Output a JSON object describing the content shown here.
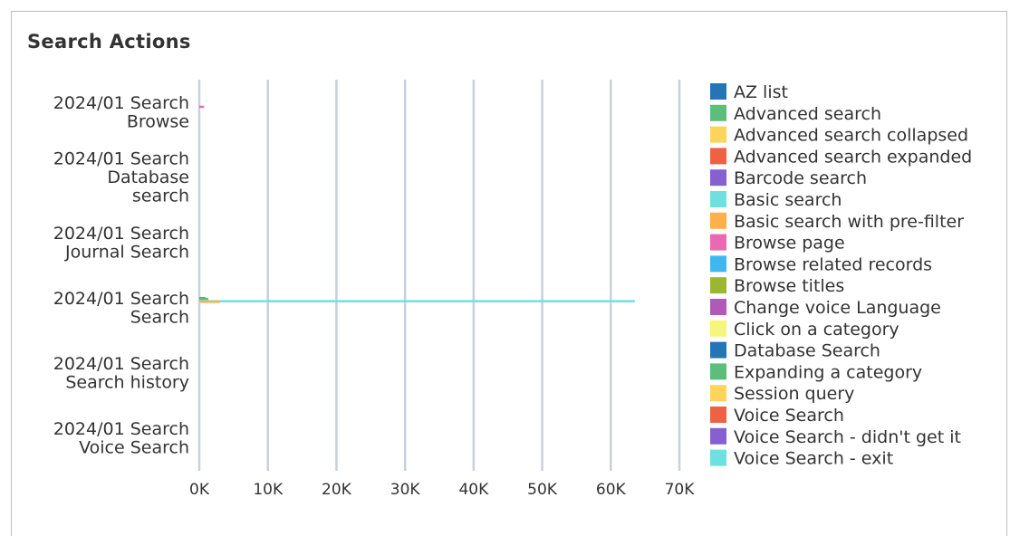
{
  "panel": {
    "title": "Search Actions"
  },
  "chart_data": {
    "type": "bar",
    "orientation": "horizontal",
    "title": "Search Actions",
    "categories": [
      [
        "2024/01 Search",
        "Browse"
      ],
      [
        "2024/01 Search",
        "Database",
        "search"
      ],
      [
        "2024/01 Search",
        "Journal Search"
      ],
      [
        "2024/01 Search",
        "Search"
      ],
      [
        "2024/01 Search",
        "Search history"
      ],
      [
        "2024/01 Search",
        "Voice Search"
      ]
    ],
    "xlim": [
      0,
      70000
    ],
    "xticks": [
      0,
      10000,
      20000,
      30000,
      40000,
      50000,
      60000,
      70000
    ],
    "xtick_labels": [
      "0K",
      "10K",
      "20K",
      "30K",
      "40K",
      "50K",
      "60K",
      "70K"
    ],
    "grid": true,
    "legend_position": "right",
    "series": [
      {
        "name": "AZ list",
        "color": "#2475b5",
        "values": [
          0,
          0,
          0,
          900,
          0,
          0
        ]
      },
      {
        "name": "Advanced search",
        "color": "#5dbd7a",
        "values": [
          0,
          0,
          0,
          1300,
          0,
          0
        ]
      },
      {
        "name": "Advanced search collapsed",
        "color": "#ffd45c",
        "values": [
          0,
          0,
          0,
          0,
          0,
          0
        ]
      },
      {
        "name": "Advanced search expanded",
        "color": "#ef6144",
        "values": [
          0,
          0,
          0,
          0,
          0,
          0
        ]
      },
      {
        "name": "Barcode search",
        "color": "#8660d0",
        "values": [
          0,
          0,
          0,
          0,
          0,
          0
        ]
      },
      {
        "name": "Basic search",
        "color": "#6ee0df",
        "values": [
          0,
          0,
          0,
          63500,
          0,
          0
        ]
      },
      {
        "name": "Basic search with pre-filter",
        "color": "#ffb04a",
        "values": [
          0,
          0,
          0,
          3000,
          0,
          0
        ]
      },
      {
        "name": "Browse page",
        "color": "#e96ab2",
        "values": [
          700,
          0,
          0,
          0,
          0,
          0
        ]
      },
      {
        "name": "Browse related records",
        "color": "#3fb8ef",
        "values": [
          0,
          0,
          0,
          0,
          0,
          0
        ]
      },
      {
        "name": "Browse titles",
        "color": "#9ab72f",
        "values": [
          0,
          0,
          0,
          0,
          0,
          0
        ]
      },
      {
        "name": "Change voice Language",
        "color": "#b159b8",
        "values": [
          0,
          0,
          0,
          0,
          0,
          0
        ]
      },
      {
        "name": "Click on a category",
        "color": "#f7f57a",
        "values": [
          0,
          0,
          0,
          0,
          0,
          0
        ]
      },
      {
        "name": "Database Search",
        "color": "#2475b5",
        "values": [
          0,
          0,
          0,
          0,
          0,
          0
        ]
      },
      {
        "name": "Expanding a category",
        "color": "#5dbd7a",
        "values": [
          0,
          0,
          0,
          0,
          0,
          0
        ]
      },
      {
        "name": "Session query",
        "color": "#ffd45c",
        "values": [
          0,
          0,
          0,
          0,
          0,
          0
        ]
      },
      {
        "name": "Voice Search",
        "color": "#ef6144",
        "values": [
          0,
          0,
          0,
          0,
          0,
          0
        ]
      },
      {
        "name": "Voice Search - didn't get it",
        "color": "#8660d0",
        "values": [
          0,
          0,
          0,
          0,
          0,
          0
        ]
      },
      {
        "name": "Voice Search - exit",
        "color": "#6ee0df",
        "values": [
          0,
          0,
          0,
          0,
          0,
          0
        ]
      }
    ]
  }
}
